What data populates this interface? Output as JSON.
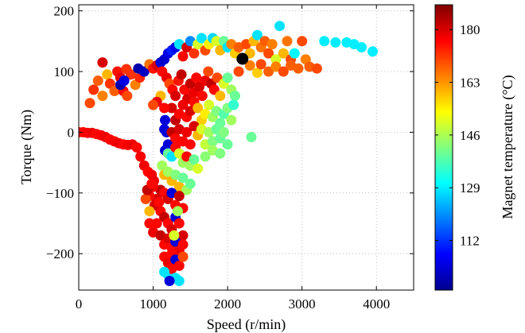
{
  "chart_data": {
    "type": "scatter",
    "xlabel": "Speed (r/min)",
    "ylabel": "Torque (Nm)",
    "colorbar_label": "Magnet temperature (°C)",
    "xlim": [
      0,
      4500
    ],
    "ylim": [
      -260,
      210
    ],
    "clim": [
      96,
      188
    ],
    "x_ticks": [
      0,
      1000,
      2000,
      3000,
      4000
    ],
    "y_ticks": [
      200,
      100,
      0,
      -100,
      -200
    ],
    "colorbar_ticks": [
      112,
      129,
      146,
      163,
      180
    ],
    "colormap": "jet",
    "grid": true,
    "highlight_point": {
      "x": 2200,
      "y": 121,
      "color": "#000000"
    },
    "points": [
      {
        "x": 0,
        "y": 0,
        "t": 175
      },
      {
        "x": 60,
        "y": 0,
        "t": 176
      },
      {
        "x": 120,
        "y": -1,
        "t": 177
      },
      {
        "x": 180,
        "y": -1,
        "t": 178
      },
      {
        "x": 240,
        "y": -3,
        "t": 176
      },
      {
        "x": 300,
        "y": -5,
        "t": 177
      },
      {
        "x": 360,
        "y": -8,
        "t": 178
      },
      {
        "x": 420,
        "y": -12,
        "t": 176
      },
      {
        "x": 480,
        "y": -15,
        "t": 177
      },
      {
        "x": 540,
        "y": -18,
        "t": 178
      },
      {
        "x": 600,
        "y": -20,
        "t": 176
      },
      {
        "x": 660,
        "y": -21,
        "t": 177
      },
      {
        "x": 720,
        "y": -20,
        "t": 178
      },
      {
        "x": 780,
        "y": -25,
        "t": 176
      },
      {
        "x": 830,
        "y": -40,
        "t": 177
      },
      {
        "x": 880,
        "y": -55,
        "t": 178
      },
      {
        "x": 930,
        "y": -65,
        "t": 176
      },
      {
        "x": 980,
        "y": -70,
        "t": 177
      },
      {
        "x": 1010,
        "y": -80,
        "t": 178
      },
      {
        "x": 150,
        "y": 48,
        "t": 170
      },
      {
        "x": 200,
        "y": 70,
        "t": 172
      },
      {
        "x": 260,
        "y": 85,
        "t": 168
      },
      {
        "x": 320,
        "y": 60,
        "t": 165
      },
      {
        "x": 380,
        "y": 95,
        "t": 160
      },
      {
        "x": 420,
        "y": 80,
        "t": 172
      },
      {
        "x": 480,
        "y": 68,
        "t": 168
      },
      {
        "x": 520,
        "y": 100,
        "t": 175
      },
      {
        "x": 560,
        "y": 90,
        "t": 178
      },
      {
        "x": 600,
        "y": 68,
        "t": 176
      },
      {
        "x": 650,
        "y": 60,
        "t": 170
      },
      {
        "x": 700,
        "y": 95,
        "t": 172
      },
      {
        "x": 760,
        "y": 78,
        "t": 165
      },
      {
        "x": 820,
        "y": 90,
        "t": 173
      },
      {
        "x": 870,
        "y": 100,
        "t": 176
      },
      {
        "x": 320,
        "y": 115,
        "t": 180
      },
      {
        "x": 560,
        "y": 78,
        "t": 100
      },
      {
        "x": 610,
        "y": 85,
        "t": 105
      },
      {
        "x": 640,
        "y": 104,
        "t": 172
      },
      {
        "x": 800,
        "y": 105,
        "t": 100
      },
      {
        "x": 880,
        "y": 100,
        "t": 102
      },
      {
        "x": 950,
        "y": 112,
        "t": 166
      },
      {
        "x": 1000,
        "y": 105,
        "t": 175
      },
      {
        "x": 1050,
        "y": 110,
        "t": 180
      },
      {
        "x": 1100,
        "y": 115,
        "t": 104
      },
      {
        "x": 1150,
        "y": 120,
        "t": 103
      },
      {
        "x": 1200,
        "y": 130,
        "t": 105
      },
      {
        "x": 1250,
        "y": 135,
        "t": 110
      },
      {
        "x": 1300,
        "y": 140,
        "t": 106
      },
      {
        "x": 1350,
        "y": 145,
        "t": 128
      },
      {
        "x": 1400,
        "y": 125,
        "t": 176
      },
      {
        "x": 1450,
        "y": 140,
        "t": 180
      },
      {
        "x": 1500,
        "y": 150,
        "t": 120
      },
      {
        "x": 1550,
        "y": 130,
        "t": 172
      },
      {
        "x": 1600,
        "y": 145,
        "t": 150
      },
      {
        "x": 1650,
        "y": 155,
        "t": 128
      },
      {
        "x": 1700,
        "y": 135,
        "t": 170
      },
      {
        "x": 1750,
        "y": 145,
        "t": 155
      },
      {
        "x": 1800,
        "y": 155,
        "t": 127
      },
      {
        "x": 1850,
        "y": 150,
        "t": 150
      },
      {
        "x": 1900,
        "y": 135,
        "t": 160
      },
      {
        "x": 1950,
        "y": 150,
        "t": 140
      },
      {
        "x": 2000,
        "y": 140,
        "t": 128
      },
      {
        "x": 2050,
        "y": 145,
        "t": 165
      },
      {
        "x": 2100,
        "y": 130,
        "t": 158
      },
      {
        "x": 2150,
        "y": 140,
        "t": 168
      },
      {
        "x": 2250,
        "y": 145,
        "t": 170
      },
      {
        "x": 2300,
        "y": 130,
        "t": 160
      },
      {
        "x": 2350,
        "y": 150,
        "t": 160
      },
      {
        "x": 2400,
        "y": 160,
        "t": 128
      },
      {
        "x": 2450,
        "y": 140,
        "t": 166
      },
      {
        "x": 2500,
        "y": 150,
        "t": 168
      },
      {
        "x": 2550,
        "y": 130,
        "t": 170
      },
      {
        "x": 2600,
        "y": 145,
        "t": 165
      },
      {
        "x": 2650,
        "y": 120,
        "t": 150
      },
      {
        "x": 2700,
        "y": 175,
        "t": 128
      },
      {
        "x": 2750,
        "y": 130,
        "t": 160
      },
      {
        "x": 2800,
        "y": 150,
        "t": 166
      },
      {
        "x": 2850,
        "y": 120,
        "t": 170
      },
      {
        "x": 2950,
        "y": 105,
        "t": 168
      },
      {
        "x": 3000,
        "y": 150,
        "t": 170
      },
      {
        "x": 3050,
        "y": 120,
        "t": 165
      },
      {
        "x": 3100,
        "y": 108,
        "t": 168
      },
      {
        "x": 3200,
        "y": 105,
        "t": 170
      },
      {
        "x": 3300,
        "y": 150,
        "t": 129
      },
      {
        "x": 3450,
        "y": 148,
        "t": 129
      },
      {
        "x": 3600,
        "y": 148,
        "t": 129
      },
      {
        "x": 3700,
        "y": 145,
        "t": 129
      },
      {
        "x": 3800,
        "y": 140,
        "t": 129
      },
      {
        "x": 3950,
        "y": 133,
        "t": 129
      },
      {
        "x": 2900,
        "y": 130,
        "t": 130
      },
      {
        "x": 2200,
        "y": 120,
        "t": 160
      },
      {
        "x": 2150,
        "y": 100,
        "t": 170
      },
      {
        "x": 2300,
        "y": 110,
        "t": 165
      },
      {
        "x": 2400,
        "y": 98,
        "t": 158
      },
      {
        "x": 2450,
        "y": 112,
        "t": 170
      },
      {
        "x": 2550,
        "y": 100,
        "t": 168
      },
      {
        "x": 2650,
        "y": 108,
        "t": 165
      },
      {
        "x": 2750,
        "y": 100,
        "t": 170
      },
      {
        "x": 2850,
        "y": 110,
        "t": 168
      },
      {
        "x": 1120,
        "y": 100,
        "t": 176
      },
      {
        "x": 1180,
        "y": 90,
        "t": 178
      },
      {
        "x": 1220,
        "y": 80,
        "t": 170
      },
      {
        "x": 1260,
        "y": 70,
        "t": 176
      },
      {
        "x": 1300,
        "y": 60,
        "t": 180
      },
      {
        "x": 1340,
        "y": 85,
        "t": 175
      },
      {
        "x": 1380,
        "y": 95,
        "t": 182
      },
      {
        "x": 1420,
        "y": 70,
        "t": 176
      },
      {
        "x": 1460,
        "y": 55,
        "t": 180
      },
      {
        "x": 1500,
        "y": 80,
        "t": 182
      },
      {
        "x": 1540,
        "y": 65,
        "t": 178
      },
      {
        "x": 1580,
        "y": 90,
        "t": 176
      },
      {
        "x": 1620,
        "y": 75,
        "t": 180
      },
      {
        "x": 1660,
        "y": 60,
        "t": 176
      },
      {
        "x": 1700,
        "y": 85,
        "t": 178
      },
      {
        "x": 1740,
        "y": 100,
        "t": 170
      },
      {
        "x": 1780,
        "y": 80,
        "t": 182
      },
      {
        "x": 1820,
        "y": 70,
        "t": 176
      },
      {
        "x": 1860,
        "y": 90,
        "t": 170
      },
      {
        "x": 1900,
        "y": 60,
        "t": 160
      },
      {
        "x": 1950,
        "y": 80,
        "t": 150
      },
      {
        "x": 2000,
        "y": 90,
        "t": 140
      },
      {
        "x": 2050,
        "y": 70,
        "t": 145
      },
      {
        "x": 2100,
        "y": 60,
        "t": 140
      },
      {
        "x": 1250,
        "y": 40,
        "t": 180
      },
      {
        "x": 1300,
        "y": 20,
        "t": 182
      },
      {
        "x": 1350,
        "y": 30,
        "t": 176
      },
      {
        "x": 1400,
        "y": 45,
        "t": 178
      },
      {
        "x": 1450,
        "y": 25,
        "t": 176
      },
      {
        "x": 1500,
        "y": 35,
        "t": 180
      },
      {
        "x": 1550,
        "y": 50,
        "t": 176
      },
      {
        "x": 1600,
        "y": 40,
        "t": 160
      },
      {
        "x": 1650,
        "y": 20,
        "t": 158
      },
      {
        "x": 1700,
        "y": 30,
        "t": 155
      },
      {
        "x": 1750,
        "y": 45,
        "t": 150
      },
      {
        "x": 1800,
        "y": 25,
        "t": 145
      },
      {
        "x": 1850,
        "y": 35,
        "t": 142
      },
      {
        "x": 1900,
        "y": 15,
        "t": 140
      },
      {
        "x": 1950,
        "y": 30,
        "t": 138
      },
      {
        "x": 2000,
        "y": 40,
        "t": 142
      },
      {
        "x": 2050,
        "y": 20,
        "t": 145
      },
      {
        "x": 2080,
        "y": 45,
        "t": 135
      },
      {
        "x": 1150,
        "y": 40,
        "t": 176
      },
      {
        "x": 1100,
        "y": 60,
        "t": 160
      },
      {
        "x": 1050,
        "y": 50,
        "t": 178
      },
      {
        "x": 1000,
        "y": 45,
        "t": 170
      },
      {
        "x": 1160,
        "y": 20,
        "t": 104
      },
      {
        "x": 1180,
        "y": 0,
        "t": 104
      },
      {
        "x": 1200,
        "y": -20,
        "t": 104
      },
      {
        "x": 1160,
        "y": -30,
        "t": 104
      },
      {
        "x": 1150,
        "y": 5,
        "t": 104
      },
      {
        "x": 1250,
        "y": 0,
        "t": 182
      },
      {
        "x": 1300,
        "y": -10,
        "t": 176
      },
      {
        "x": 1350,
        "y": 5,
        "t": 180
      },
      {
        "x": 1400,
        "y": -15,
        "t": 176
      },
      {
        "x": 1450,
        "y": 0,
        "t": 178
      },
      {
        "x": 1500,
        "y": -20,
        "t": 176
      },
      {
        "x": 1550,
        "y": 10,
        "t": 180
      },
      {
        "x": 1600,
        "y": -5,
        "t": 160
      },
      {
        "x": 1650,
        "y": 5,
        "t": 150
      },
      {
        "x": 1700,
        "y": -20,
        "t": 148
      },
      {
        "x": 1750,
        "y": 0,
        "t": 145
      },
      {
        "x": 1800,
        "y": -15,
        "t": 142
      },
      {
        "x": 1850,
        "y": 5,
        "t": 140
      },
      {
        "x": 1900,
        "y": -10,
        "t": 140
      },
      {
        "x": 1950,
        "y": 0,
        "t": 142
      },
      {
        "x": 2000,
        "y": -20,
        "t": 140
      },
      {
        "x": 1800,
        "y": -30,
        "t": 145
      },
      {
        "x": 1900,
        "y": -35,
        "t": 142
      },
      {
        "x": 1700,
        "y": -40,
        "t": 143
      },
      {
        "x": 2320,
        "y": -8,
        "t": 140
      },
      {
        "x": 1200,
        "y": -35,
        "t": 140
      },
      {
        "x": 1250,
        "y": -40,
        "t": 128
      },
      {
        "x": 1300,
        "y": -25,
        "t": 176
      },
      {
        "x": 1350,
        "y": -35,
        "t": 150
      },
      {
        "x": 1400,
        "y": -50,
        "t": 145
      },
      {
        "x": 1450,
        "y": -40,
        "t": 176
      },
      {
        "x": 1500,
        "y": -55,
        "t": 145
      },
      {
        "x": 1550,
        "y": -45,
        "t": 140
      },
      {
        "x": 1600,
        "y": -60,
        "t": 150
      },
      {
        "x": 1120,
        "y": -55,
        "t": 145
      },
      {
        "x": 1150,
        "y": -70,
        "t": 160
      },
      {
        "x": 1200,
        "y": -65,
        "t": 145
      },
      {
        "x": 1250,
        "y": -80,
        "t": 160
      },
      {
        "x": 1300,
        "y": -70,
        "t": 142
      },
      {
        "x": 1350,
        "y": -90,
        "t": 160
      },
      {
        "x": 1400,
        "y": -75,
        "t": 140
      },
      {
        "x": 1450,
        "y": -95,
        "t": 145
      },
      {
        "x": 1500,
        "y": -85,
        "t": 140
      },
      {
        "x": 1100,
        "y": -95,
        "t": 182
      },
      {
        "x": 1150,
        "y": -100,
        "t": 176
      },
      {
        "x": 1200,
        "y": -110,
        "t": 180
      },
      {
        "x": 1250,
        "y": -100,
        "t": 104
      },
      {
        "x": 1300,
        "y": -120,
        "t": 176
      },
      {
        "x": 1350,
        "y": -105,
        "t": 182
      },
      {
        "x": 1400,
        "y": -125,
        "t": 176
      },
      {
        "x": 1050,
        "y": -110,
        "t": 180
      },
      {
        "x": 1000,
        "y": -90,
        "t": 178
      },
      {
        "x": 950,
        "y": -105,
        "t": 176
      },
      {
        "x": 900,
        "y": -110,
        "t": 170
      },
      {
        "x": 1100,
        "y": -130,
        "t": 176
      },
      {
        "x": 1150,
        "y": -140,
        "t": 182
      },
      {
        "x": 1200,
        "y": -150,
        "t": 176
      },
      {
        "x": 1250,
        "y": -160,
        "t": 180
      },
      {
        "x": 1300,
        "y": -140,
        "t": 104
      },
      {
        "x": 1350,
        "y": -150,
        "t": 176
      },
      {
        "x": 1400,
        "y": -170,
        "t": 180
      },
      {
        "x": 1050,
        "y": -150,
        "t": 176
      },
      {
        "x": 1000,
        "y": -165,
        "t": 178
      },
      {
        "x": 950,
        "y": -150,
        "t": 176
      },
      {
        "x": 1100,
        "y": -170,
        "t": 182
      },
      {
        "x": 1150,
        "y": -185,
        "t": 176
      },
      {
        "x": 1200,
        "y": -175,
        "t": 180
      },
      {
        "x": 1250,
        "y": -190,
        "t": 176
      },
      {
        "x": 1300,
        "y": -180,
        "t": 104
      },
      {
        "x": 1350,
        "y": -195,
        "t": 178
      },
      {
        "x": 1400,
        "y": -185,
        "t": 176
      },
      {
        "x": 1150,
        "y": -205,
        "t": 176
      },
      {
        "x": 1200,
        "y": -215,
        "t": 178
      },
      {
        "x": 1250,
        "y": -200,
        "t": 176
      },
      {
        "x": 1300,
        "y": -210,
        "t": 104
      },
      {
        "x": 1350,
        "y": -220,
        "t": 176
      },
      {
        "x": 1400,
        "y": -205,
        "t": 170
      },
      {
        "x": 1200,
        "y": -235,
        "t": 128
      },
      {
        "x": 1250,
        "y": -225,
        "t": 176
      },
      {
        "x": 1300,
        "y": -240,
        "t": 128
      },
      {
        "x": 1350,
        "y": -245,
        "t": 128
      },
      {
        "x": 1220,
        "y": -245,
        "t": 104
      },
      {
        "x": 1020,
        "y": -120,
        "t": 180
      },
      {
        "x": 1080,
        "y": -115,
        "t": 176
      },
      {
        "x": 950,
        "y": -130,
        "t": 160
      },
      {
        "x": 920,
        "y": -95,
        "t": 182
      },
      {
        "x": 980,
        "y": -85,
        "t": 176
      },
      {
        "x": 1150,
        "y": -230,
        "t": 128
      },
      {
        "x": 1280,
        "y": -170,
        "t": 150
      },
      {
        "x": 1330,
        "y": -130,
        "t": 145
      }
    ]
  }
}
